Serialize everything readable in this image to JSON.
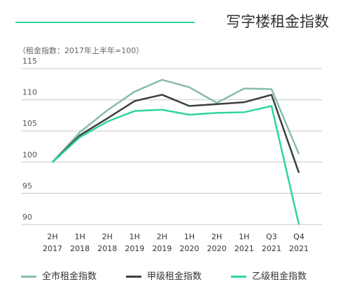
{
  "chart_data": {
    "type": "line",
    "title": "写字楼租金指数",
    "subtitle": "（租金指数：2017年上半年=100）",
    "categories": [
      "2H 2017",
      "1H 2018",
      "2H 2018",
      "1H 2019",
      "2H 2019",
      "1H 2020",
      "2H 2020",
      "1H 2021",
      "Q3 2021",
      "Q4 2021"
    ],
    "series": [
      {
        "name": "全市租金指数",
        "color": "#86bcaa",
        "values": [
          100,
          104.8,
          108.3,
          111.3,
          113.2,
          112.0,
          109.5,
          111.8,
          111.7,
          101.3
        ]
      },
      {
        "name": "甲级租金指数",
        "color": "#3a4040",
        "values": [
          100,
          104.3,
          107.0,
          109.8,
          110.8,
          109.0,
          109.3,
          109.6,
          110.8,
          98.3
        ]
      },
      {
        "name": "乙级租金指数",
        "color": "#2fd59b",
        "values": [
          100,
          104.0,
          106.5,
          108.2,
          108.4,
          107.6,
          107.9,
          108.0,
          109.0,
          90
        ]
      }
    ],
    "ylim": [
      90,
      115
    ],
    "yticks": [
      90,
      95,
      100,
      105,
      110,
      115
    ],
    "grid": true
  }
}
